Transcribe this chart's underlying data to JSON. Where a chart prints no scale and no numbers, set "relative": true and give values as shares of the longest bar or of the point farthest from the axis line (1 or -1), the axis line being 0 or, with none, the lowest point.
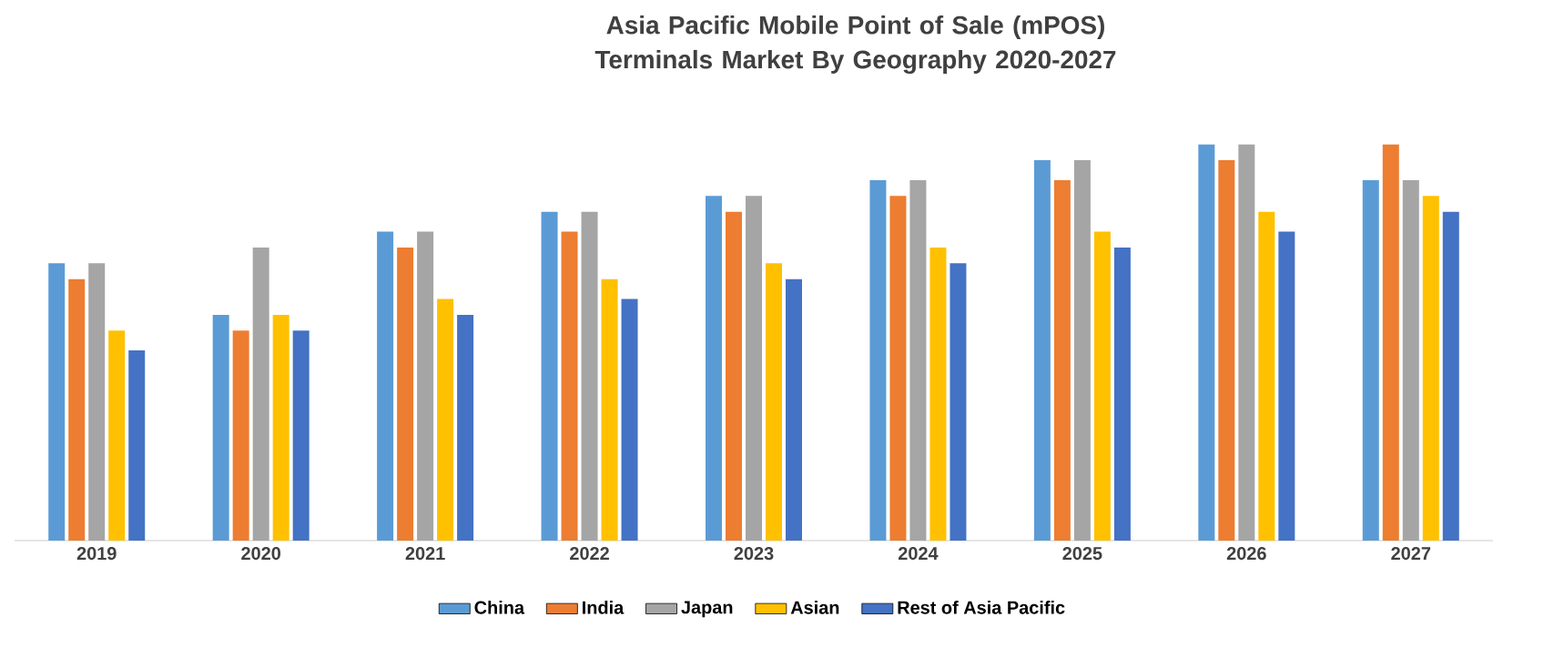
{
  "chart_data": {
    "type": "bar",
    "title": "Asia Pacific Mobile Point of Sale (mPOS) Terminals Market By Geography 2020-2027",
    "categories": [
      "2019",
      "2020",
      "2021",
      "2022",
      "2023",
      "2024",
      "2025",
      "2026",
      "2027"
    ],
    "relative": true,
    "series": [
      {
        "name": "China",
        "color": "#5b9bd5",
        "values": [
          0.7,
          0.57,
          0.78,
          0.83,
          0.87,
          0.91,
          0.96,
          1.0,
          0.91
        ]
      },
      {
        "name": "India",
        "color": "#ed7d31",
        "values": [
          0.66,
          0.53,
          0.74,
          0.78,
          0.83,
          0.87,
          0.91,
          0.96,
          1.0
        ]
      },
      {
        "name": "Japan",
        "color": "#a5a5a5",
        "values": [
          0.7,
          0.74,
          0.78,
          0.83,
          0.87,
          0.91,
          0.96,
          1.0,
          0.91
        ]
      },
      {
        "name": "Asian",
        "color": "#ffc000",
        "values": [
          0.53,
          0.57,
          0.61,
          0.66,
          0.7,
          0.74,
          0.78,
          0.83,
          0.87
        ]
      },
      {
        "name": "Rest of Asia Pacific",
        "color": "#4472c4",
        "values": [
          0.48,
          0.53,
          0.57,
          0.61,
          0.66,
          0.7,
          0.74,
          0.78,
          0.83
        ]
      }
    ],
    "legend": "bottom"
  }
}
